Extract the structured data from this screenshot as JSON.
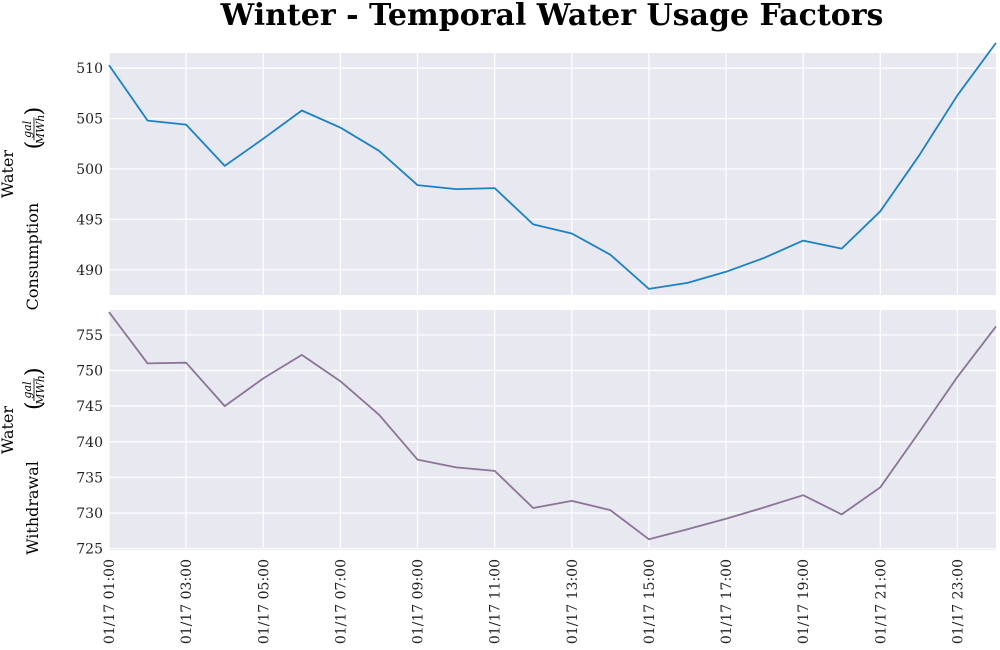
{
  "chart_title": "Winter - Temporal Water Usage Factors",
  "colors": {
    "panel_bg": "#e8e8f1",
    "grid": "#ffffff",
    "consumption": "#1a82c4",
    "withdrawal": "#8a7596"
  },
  "chart_data": {
    "type": "line",
    "title": "Winter - Temporal Water Usage Factors",
    "x": [
      "01/17  01:00",
      "01/17  02:00",
      "01/17  03:00",
      "01/17  04:00",
      "01/17  05:00",
      "01/17  06:00",
      "01/17  07:00",
      "01/17  08:00",
      "01/17  09:00",
      "01/17  10:00",
      "01/17  11:00",
      "01/17  12:00",
      "01/17  13:00",
      "01/17  14:00",
      "01/17  15:00",
      "01/17  16:00",
      "01/17  17:00",
      "01/17  18:00",
      "01/17  19:00",
      "01/17  20:00",
      "01/17  21:00",
      "01/17  22:00",
      "01/17  23:00",
      "01/17  24:00"
    ],
    "x_tick_labels": [
      "01/17  01:00",
      "01/17  03:00",
      "01/17  05:00",
      "01/17  07:00",
      "01/17  09:00",
      "01/17  11:00",
      "01/17  13:00",
      "01/17  15:00",
      "01/17  17:00",
      "01/17  19:00",
      "01/17  21:00",
      "01/17  23:00"
    ],
    "grid": true,
    "panels": [
      {
        "ylabel_line1": "Water",
        "ylabel_line2": "Consumption",
        "ylabel_unit_num": "gal",
        "ylabel_unit_den": "MWh",
        "ylim": [
          487.5,
          511.5
        ],
        "yticks": [
          490,
          495,
          500,
          505,
          510
        ],
        "series": [
          {
            "values": [
              510.3,
              504.8,
              504.4,
              500.3,
              503.0,
              505.8,
              504.1,
              501.8,
              498.4,
              498.0,
              498.1,
              494.5,
              493.6,
              491.5,
              488.1,
              488.7,
              489.8,
              491.2,
              492.9,
              492.1,
              495.8,
              501.3,
              507.3,
              512.5
            ]
          }
        ]
      },
      {
        "ylabel_line1": "Water",
        "ylabel_line2": "Withdrawal",
        "ylabel_unit_num": "gal",
        "ylabel_unit_den": "MWh",
        "ylim": [
          724.8,
          758.5
        ],
        "yticks": [
          725,
          730,
          735,
          740,
          745,
          750,
          755
        ],
        "series": [
          {
            "values": [
              758.2,
              751.0,
              751.1,
              745.0,
              748.9,
              752.2,
              748.5,
              743.8,
              737.5,
              736.4,
              735.9,
              730.7,
              731.7,
              730.4,
              726.3,
              727.7,
              729.2,
              730.8,
              732.5,
              729.8,
              733.6,
              741.3,
              749.1,
              756.2
            ]
          }
        ]
      }
    ]
  }
}
